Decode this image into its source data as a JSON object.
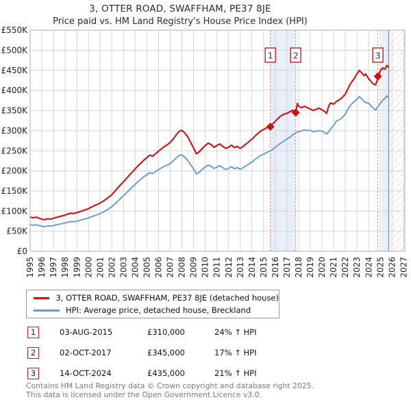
{
  "title": "3, OTTER ROAD, SWAFFHAM, PE37 8JE",
  "subtitle": "Price paid vs. HM Land Registry's House Price Index (HPI)",
  "chart_data": {
    "type": "line",
    "title": "3, OTTER ROAD, SWAFFHAM, PE37 8JE",
    "xlabel": "",
    "ylabel": "",
    "xlim": [
      1995,
      2027.1
    ],
    "ylim": [
      0,
      550
    ],
    "grid": true,
    "legend_position": "below",
    "y_ticks": [
      {
        "v": 0,
        "label": "£0"
      },
      {
        "v": 50,
        "label": "£50K"
      },
      {
        "v": 100,
        "label": "£100K"
      },
      {
        "v": 150,
        "label": "£150K"
      },
      {
        "v": 200,
        "label": "£200K"
      },
      {
        "v": 250,
        "label": "£250K"
      },
      {
        "v": 300,
        "label": "£300K"
      },
      {
        "v": 350,
        "label": "£350K"
      },
      {
        "v": 400,
        "label": "£400K"
      },
      {
        "v": 450,
        "label": "£450K"
      },
      {
        "v": 500,
        "label": "£500K"
      },
      {
        "v": 550,
        "label": "£550K"
      }
    ],
    "x_ticks": [
      1995,
      1996,
      1997,
      1998,
      1999,
      2000,
      2001,
      2002,
      2003,
      2004,
      2005,
      2006,
      2007,
      2008,
      2009,
      2010,
      2011,
      2012,
      2013,
      2014,
      2015,
      2016,
      2017,
      2018,
      2019,
      2020,
      2021,
      2022,
      2023,
      2024,
      2025,
      2026,
      2027
    ],
    "colors": {
      "property": "#cc1111",
      "hpi": "#6699cc",
      "sale_dashed": "#f07878",
      "band_fill": "#e8effa",
      "hatch_line": "#c9c9d2",
      "cutoff_line": "#8d95a5",
      "grid": "#d4d4d4",
      "border": "#adadad",
      "marker_box_border": "#bb2222"
    },
    "bands": [
      {
        "from": 2015.58,
        "to": 2017.75
      },
      {
        "from": 2025.12,
        "to": 2025.72
      }
    ],
    "future_hatch_from": 2025.72,
    "sales": [
      {
        "label": "1",
        "x": 2015.58,
        "price_k": 310
      },
      {
        "label": "2",
        "x": 2017.75,
        "price_k": 345
      },
      {
        "label": "3",
        "x": 2024.79,
        "price_k": 435
      }
    ],
    "series": [
      {
        "name": "3, OTTER ROAD, SWAFFHAM, PE37 8JE (detached house)",
        "color_key": "property",
        "width": 2.1,
        "points": [
          [
            1995.0,
            85
          ],
          [
            1995.25,
            83.5
          ],
          [
            1995.5,
            85
          ],
          [
            1995.75,
            82.5
          ],
          [
            1996.0,
            80
          ],
          [
            1996.25,
            78.5
          ],
          [
            1996.5,
            81
          ],
          [
            1996.75,
            80
          ],
          [
            1997.0,
            82
          ],
          [
            1997.25,
            84.5
          ],
          [
            1997.5,
            86.5
          ],
          [
            1997.75,
            88
          ],
          [
            1998.0,
            90
          ],
          [
            1998.25,
            93
          ],
          [
            1998.5,
            95
          ],
          [
            1998.75,
            94
          ],
          [
            1999.0,
            96
          ],
          [
            1999.25,
            98.5
          ],
          [
            1999.5,
            101
          ],
          [
            1999.75,
            103.5
          ],
          [
            2000.0,
            106
          ],
          [
            2000.25,
            110
          ],
          [
            2000.5,
            113.5
          ],
          [
            2000.75,
            116.5
          ],
          [
            2001.0,
            120
          ],
          [
            2001.25,
            124.5
          ],
          [
            2001.5,
            129.5
          ],
          [
            2001.75,
            135
          ],
          [
            2002.0,
            141
          ],
          [
            2002.25,
            149
          ],
          [
            2002.5,
            157.5
          ],
          [
            2002.75,
            165.5
          ],
          [
            2003.0,
            173
          ],
          [
            2003.25,
            181
          ],
          [
            2003.5,
            189
          ],
          [
            2003.75,
            197
          ],
          [
            2004.0,
            205
          ],
          [
            2004.25,
            213
          ],
          [
            2004.5,
            220
          ],
          [
            2004.75,
            227
          ],
          [
            2005.0,
            233
          ],
          [
            2005.25,
            239
          ],
          [
            2005.5,
            236.5
          ],
          [
            2005.75,
            243
          ],
          [
            2006.0,
            249
          ],
          [
            2006.25,
            255
          ],
          [
            2006.5,
            260.5
          ],
          [
            2006.75,
            265
          ],
          [
            2007.0,
            271
          ],
          [
            2007.25,
            279
          ],
          [
            2007.5,
            289
          ],
          [
            2007.75,
            298
          ],
          [
            2008.0,
            301
          ],
          [
            2008.25,
            294
          ],
          [
            2008.5,
            285
          ],
          [
            2008.75,
            271
          ],
          [
            2009.0,
            257
          ],
          [
            2009.25,
            242.5
          ],
          [
            2009.5,
            248
          ],
          [
            2009.75,
            256
          ],
          [
            2010.0,
            263
          ],
          [
            2010.25,
            269
          ],
          [
            2010.5,
            265.5
          ],
          [
            2010.75,
            258.5
          ],
          [
            2011.0,
            263
          ],
          [
            2011.25,
            267
          ],
          [
            2011.5,
            261
          ],
          [
            2011.75,
            256
          ],
          [
            2012.0,
            259
          ],
          [
            2012.25,
            264
          ],
          [
            2012.5,
            258
          ],
          [
            2012.75,
            261
          ],
          [
            2013.0,
            256
          ],
          [
            2013.25,
            261
          ],
          [
            2013.5,
            267
          ],
          [
            2013.75,
            273
          ],
          [
            2014.0,
            279
          ],
          [
            2014.25,
            286
          ],
          [
            2014.5,
            293
          ],
          [
            2014.75,
            299
          ],
          [
            2015.0,
            303
          ],
          [
            2015.25,
            307
          ],
          [
            2015.58,
            310
          ],
          [
            2015.75,
            316
          ],
          [
            2016.0,
            323
          ],
          [
            2016.25,
            331
          ],
          [
            2016.5,
            337
          ],
          [
            2016.75,
            341
          ],
          [
            2017.0,
            343
          ],
          [
            2017.25,
            347
          ],
          [
            2017.5,
            351
          ],
          [
            2017.6,
            345
          ],
          [
            2017.75,
            345
          ],
          [
            2017.9,
            368
          ],
          [
            2018.0,
            361
          ],
          [
            2018.25,
            357
          ],
          [
            2018.5,
            361
          ],
          [
            2018.75,
            357
          ],
          [
            2019.0,
            354
          ],
          [
            2019.25,
            350
          ],
          [
            2019.5,
            353
          ],
          [
            2019.75,
            356
          ],
          [
            2020.0,
            352
          ],
          [
            2020.25,
            347
          ],
          [
            2020.4,
            343
          ],
          [
            2020.6,
            363
          ],
          [
            2020.75,
            369
          ],
          [
            2021.0,
            366
          ],
          [
            2021.25,
            373
          ],
          [
            2021.5,
            377
          ],
          [
            2021.75,
            383
          ],
          [
            2022.0,
            391
          ],
          [
            2022.25,
            406
          ],
          [
            2022.5,
            419
          ],
          [
            2022.75,
            429
          ],
          [
            2023.0,
            441
          ],
          [
            2023.2,
            450
          ],
          [
            2023.4,
            444
          ],
          [
            2023.6,
            437
          ],
          [
            2023.75,
            441
          ],
          [
            2024.0,
            429
          ],
          [
            2024.25,
            421
          ],
          [
            2024.4,
            416
          ],
          [
            2024.6,
            414
          ],
          [
            2024.79,
            430
          ],
          [
            2025.0,
            449
          ],
          [
            2025.2,
            456
          ],
          [
            2025.4,
            453
          ],
          [
            2025.55,
            462
          ],
          [
            2025.7,
            458
          ]
        ]
      },
      {
        "name": "HPI: Average price, detached house, Breckland",
        "color_key": "hpi",
        "width": 1.9,
        "points": [
          [
            1995.0,
            66
          ],
          [
            1995.25,
            65
          ],
          [
            1995.5,
            66
          ],
          [
            1995.75,
            64
          ],
          [
            1996.0,
            62.5
          ],
          [
            1996.25,
            61.5
          ],
          [
            1996.5,
            63
          ],
          [
            1996.75,
            63
          ],
          [
            1997.0,
            64
          ],
          [
            1997.25,
            66
          ],
          [
            1997.5,
            67.5
          ],
          [
            1997.75,
            69
          ],
          [
            1998.0,
            70.5
          ],
          [
            1998.25,
            72.5
          ],
          [
            1998.5,
            74
          ],
          [
            1998.75,
            73.5
          ],
          [
            1999.0,
            75
          ],
          [
            1999.25,
            77
          ],
          [
            1999.5,
            79
          ],
          [
            1999.75,
            81
          ],
          [
            2000.0,
            83
          ],
          [
            2000.25,
            86
          ],
          [
            2000.5,
            88.5
          ],
          [
            2000.75,
            91
          ],
          [
            2001.0,
            94
          ],
          [
            2001.25,
            97.5
          ],
          [
            2001.5,
            101.5
          ],
          [
            2001.75,
            106
          ],
          [
            2002.0,
            111
          ],
          [
            2002.25,
            117.5
          ],
          [
            2002.5,
            124.5
          ],
          [
            2002.75,
            131.5
          ],
          [
            2003.0,
            138.5
          ],
          [
            2003.25,
            145.5
          ],
          [
            2003.5,
            152.5
          ],
          [
            2003.75,
            159.5
          ],
          [
            2004.0,
            166.5
          ],
          [
            2004.25,
            173.5
          ],
          [
            2004.5,
            180
          ],
          [
            2004.75,
            185.5
          ],
          [
            2005.0,
            190.5
          ],
          [
            2005.25,
            195.5
          ],
          [
            2005.5,
            193.5
          ],
          [
            2005.75,
            198.5
          ],
          [
            2006.0,
            203
          ],
          [
            2006.25,
            207.5
          ],
          [
            2006.5,
            211.5
          ],
          [
            2006.75,
            214.5
          ],
          [
            2007.0,
            218.5
          ],
          [
            2007.25,
            224.5
          ],
          [
            2007.5,
            231.5
          ],
          [
            2007.75,
            238
          ],
          [
            2008.0,
            240
          ],
          [
            2008.25,
            234
          ],
          [
            2008.5,
            226.5
          ],
          [
            2008.75,
            215.5
          ],
          [
            2009.0,
            204.5
          ],
          [
            2009.25,
            192.5
          ],
          [
            2009.5,
            197
          ],
          [
            2009.75,
            204
          ],
          [
            2010.0,
            209.5
          ],
          [
            2010.25,
            214.5
          ],
          [
            2010.5,
            211.5
          ],
          [
            2010.75,
            206
          ],
          [
            2011.0,
            209.5
          ],
          [
            2011.25,
            213
          ],
          [
            2011.5,
            208
          ],
          [
            2011.75,
            203.5
          ],
          [
            2012.0,
            206
          ],
          [
            2012.25,
            210.5
          ],
          [
            2012.5,
            205.5
          ],
          [
            2012.75,
            208
          ],
          [
            2013.0,
            204
          ],
          [
            2013.25,
            208
          ],
          [
            2013.5,
            212.5
          ],
          [
            2013.75,
            217.5
          ],
          [
            2014.0,
            222
          ],
          [
            2014.25,
            228
          ],
          [
            2014.5,
            233.5
          ],
          [
            2014.75,
            238
          ],
          [
            2015.0,
            241.5
          ],
          [
            2015.25,
            245.5
          ],
          [
            2015.58,
            250
          ],
          [
            2015.75,
            253
          ],
          [
            2016.0,
            258.5
          ],
          [
            2016.25,
            264.5
          ],
          [
            2016.5,
            269.5
          ],
          [
            2016.75,
            274
          ],
          [
            2017.0,
            279
          ],
          [
            2017.25,
            284
          ],
          [
            2017.5,
            289.5
          ],
          [
            2017.75,
            295
          ],
          [
            2018.0,
            297.5
          ],
          [
            2018.25,
            299.5
          ],
          [
            2018.5,
            302
          ],
          [
            2018.75,
            300
          ],
          [
            2019.0,
            301
          ],
          [
            2019.25,
            297.5
          ],
          [
            2019.5,
            298.5
          ],
          [
            2019.75,
            300
          ],
          [
            2020.0,
            299
          ],
          [
            2020.25,
            295
          ],
          [
            2020.4,
            291.5
          ],
          [
            2020.6,
            298
          ],
          [
            2020.75,
            305
          ],
          [
            2021.0,
            313
          ],
          [
            2021.25,
            324.5
          ],
          [
            2021.5,
            327
          ],
          [
            2021.75,
            333
          ],
          [
            2022.0,
            341
          ],
          [
            2022.25,
            355
          ],
          [
            2022.5,
            365
          ],
          [
            2022.75,
            372
          ],
          [
            2023.0,
            378
          ],
          [
            2023.2,
            385
          ],
          [
            2023.4,
            379
          ],
          [
            2023.6,
            372.5
          ],
          [
            2023.75,
            370
          ],
          [
            2024.0,
            368
          ],
          [
            2024.25,
            360
          ],
          [
            2024.5,
            353.5
          ],
          [
            2024.6,
            351.5
          ],
          [
            2024.79,
            360
          ],
          [
            2025.0,
            368
          ],
          [
            2025.2,
            375.5
          ],
          [
            2025.4,
            380
          ],
          [
            2025.55,
            386
          ],
          [
            2025.7,
            383
          ]
        ]
      }
    ]
  },
  "legend": {
    "items": [
      {
        "label": "3, OTTER ROAD, SWAFFHAM, PE37 8JE (detached house)",
        "color_key": "property"
      },
      {
        "label": "HPI: Average price, detached house, Breckland",
        "color_key": "hpi"
      }
    ]
  },
  "table": {
    "rows": [
      {
        "num": "1",
        "date": "03-AUG-2015",
        "price": "£310,000",
        "hpi": "24% ↑ HPI"
      },
      {
        "num": "2",
        "date": "02-OCT-2017",
        "price": "£345,000",
        "hpi": "17% ↑ HPI"
      },
      {
        "num": "3",
        "date": "14-OCT-2024",
        "price": "£435,000",
        "hpi": "21% ↑ HPI"
      }
    ]
  },
  "footer": {
    "line1": "Contains HM Land Registry data © Crown copyright and database right 2025.",
    "line2": "This data is licensed under the Open Government Licence v3.0."
  }
}
